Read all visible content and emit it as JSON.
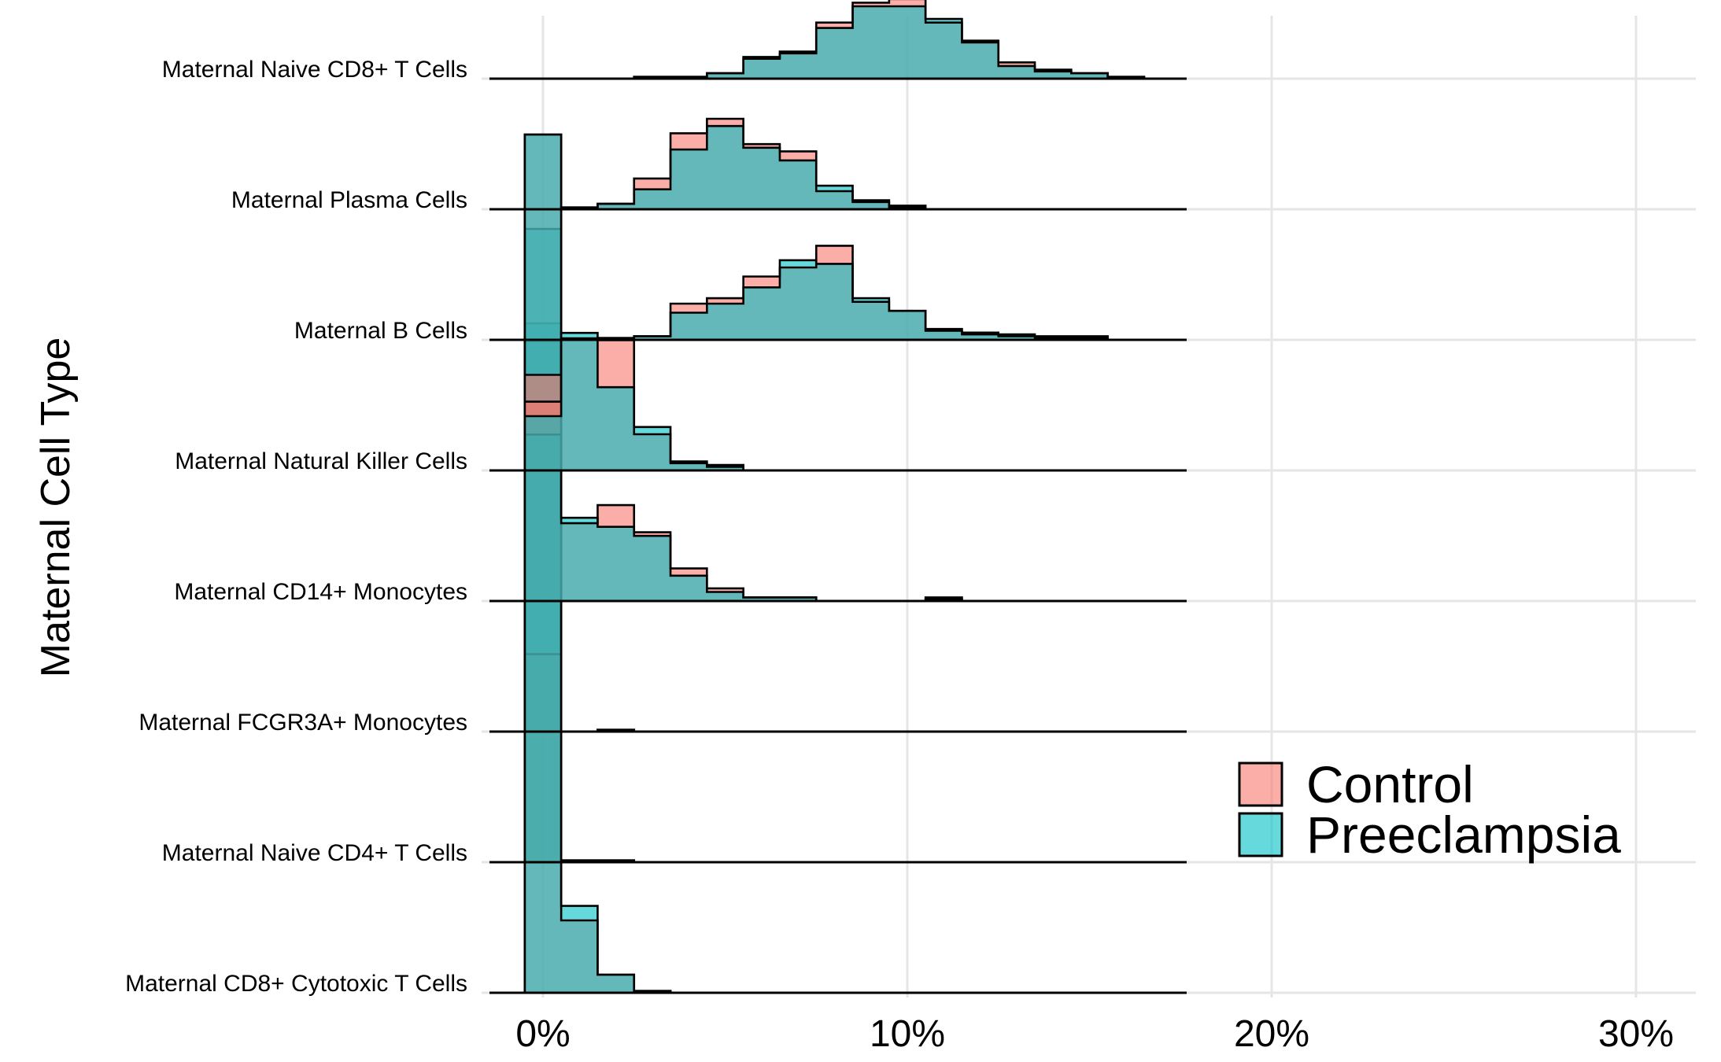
{
  "chart_data": {
    "type": "histogram-ridgeline",
    "title": "",
    "xlabel": "",
    "ylabel": "Maternal Cell Type",
    "x_ticks": [
      "0%",
      "10%",
      "20%",
      "30%"
    ],
    "x_tick_values": [
      0,
      10,
      20,
      30
    ],
    "xlim": [
      -1.6,
      31.5
    ],
    "bin_width": 1,
    "bin_start": -0.5,
    "grid": "on",
    "legend": {
      "position": "right",
      "entries": [
        "Control",
        "Preeclampsia"
      ]
    },
    "colors": {
      "Control": "#F8766D",
      "Preeclampsia": "#00BFC4",
      "overlap": "#5FB3B0",
      "grid": "#E5E5E5",
      "outline": "#000000"
    },
    "categories": [
      "Maternal CD8+ Cytotoxic T Cells",
      "Maternal Naive CD4+ T Cells",
      "Maternal FCGR3A+ Monocytes",
      "Maternal CD14+ Monocytes",
      "Maternal Natural Killer Cells",
      "Maternal B Cells",
      "Maternal Plasma Cells",
      "Maternal Naive CD8+ T Cells"
    ],
    "series": [
      {
        "name": "Control",
        "rows": [
          [
            3.6,
            0.4,
            0.1,
            0.01,
            0,
            0,
            0,
            0,
            0,
            0,
            0,
            0,
            0,
            0,
            0,
            0,
            0,
            0
          ],
          [
            1.15,
            0.01,
            0.01,
            0,
            0,
            0,
            0,
            0,
            0,
            0,
            0,
            0,
            0,
            0,
            0,
            0,
            0,
            0
          ],
          [
            3.3,
            0,
            0.01,
            0,
            0,
            0,
            0,
            0,
            0,
            0,
            0,
            0,
            0,
            0,
            0,
            0,
            0,
            0
          ],
          [
            1.25,
            0.43,
            0.53,
            0.38,
            0.18,
            0.07,
            0.02,
            0.02,
            0,
            0,
            0,
            0.02,
            0,
            0,
            0,
            0,
            0,
            0
          ],
          [
            0.38,
            0.73,
            0.72,
            0.2,
            0.05,
            0.02,
            0,
            0,
            0,
            0,
            0,
            0,
            0,
            0,
            0,
            0,
            0,
            0
          ],
          [
            0,
            0,
            0.01,
            0.02,
            0.2,
            0.23,
            0.35,
            0.4,
            0.52,
            0.21,
            0.16,
            0.06,
            0.04,
            0.03,
            0.02,
            0.02,
            0,
            0
          ],
          [
            0,
            0.01,
            0.03,
            0.17,
            0.42,
            0.5,
            0.36,
            0.32,
            0.1,
            0.04,
            0.01,
            0,
            0,
            0,
            0,
            0,
            0,
            0
          ],
          [
            0,
            0,
            0,
            0.01,
            0.01,
            0.03,
            0.11,
            0.15,
            0.31,
            0.42,
            0.44,
            0.31,
            0.21,
            0.09,
            0.05,
            0.03,
            0.01,
            0
          ]
        ]
      },
      {
        "name": "Preeclampsia",
        "rows": [
          [
            3.7,
            0.48,
            0.1,
            0.01,
            0,
            0,
            0,
            0,
            0,
            0,
            0,
            0,
            0,
            0,
            0,
            0,
            0,
            0
          ],
          [
            3.5,
            0.01,
            0.01,
            0,
            0,
            0,
            0,
            0,
            0,
            0,
            0,
            0,
            0,
            0,
            0,
            0,
            0,
            0
          ],
          [
            3.3,
            0,
            0.01,
            0,
            0,
            0,
            0,
            0,
            0,
            0,
            0,
            0,
            0,
            0,
            0,
            0,
            0,
            0
          ],
          [
            0.92,
            0.46,
            0.41,
            0.36,
            0.14,
            0.05,
            0.02,
            0.02,
            0,
            0,
            0,
            0.01,
            0,
            0,
            0,
            0,
            0,
            0
          ],
          [
            0.3,
            0.76,
            0.46,
            0.24,
            0.04,
            0.03,
            0,
            0,
            0,
            0,
            0,
            0,
            0,
            0,
            0,
            0,
            0,
            0
          ],
          [
            0,
            0,
            0.01,
            0.02,
            0.15,
            0.2,
            0.29,
            0.44,
            0.42,
            0.23,
            0.16,
            0.05,
            0.03,
            0.02,
            0.01,
            0.01,
            0,
            0
          ],
          [
            0,
            0.01,
            0.03,
            0.11,
            0.33,
            0.46,
            0.34,
            0.27,
            0.13,
            0.05,
            0.02,
            0,
            0,
            0,
            0,
            0,
            0,
            0
          ],
          [
            0,
            0,
            0,
            0.01,
            0.01,
            0.03,
            0.12,
            0.14,
            0.28,
            0.4,
            0.4,
            0.33,
            0.2,
            0.07,
            0.04,
            0.03,
            0.01,
            0
          ]
        ]
      }
    ]
  }
}
